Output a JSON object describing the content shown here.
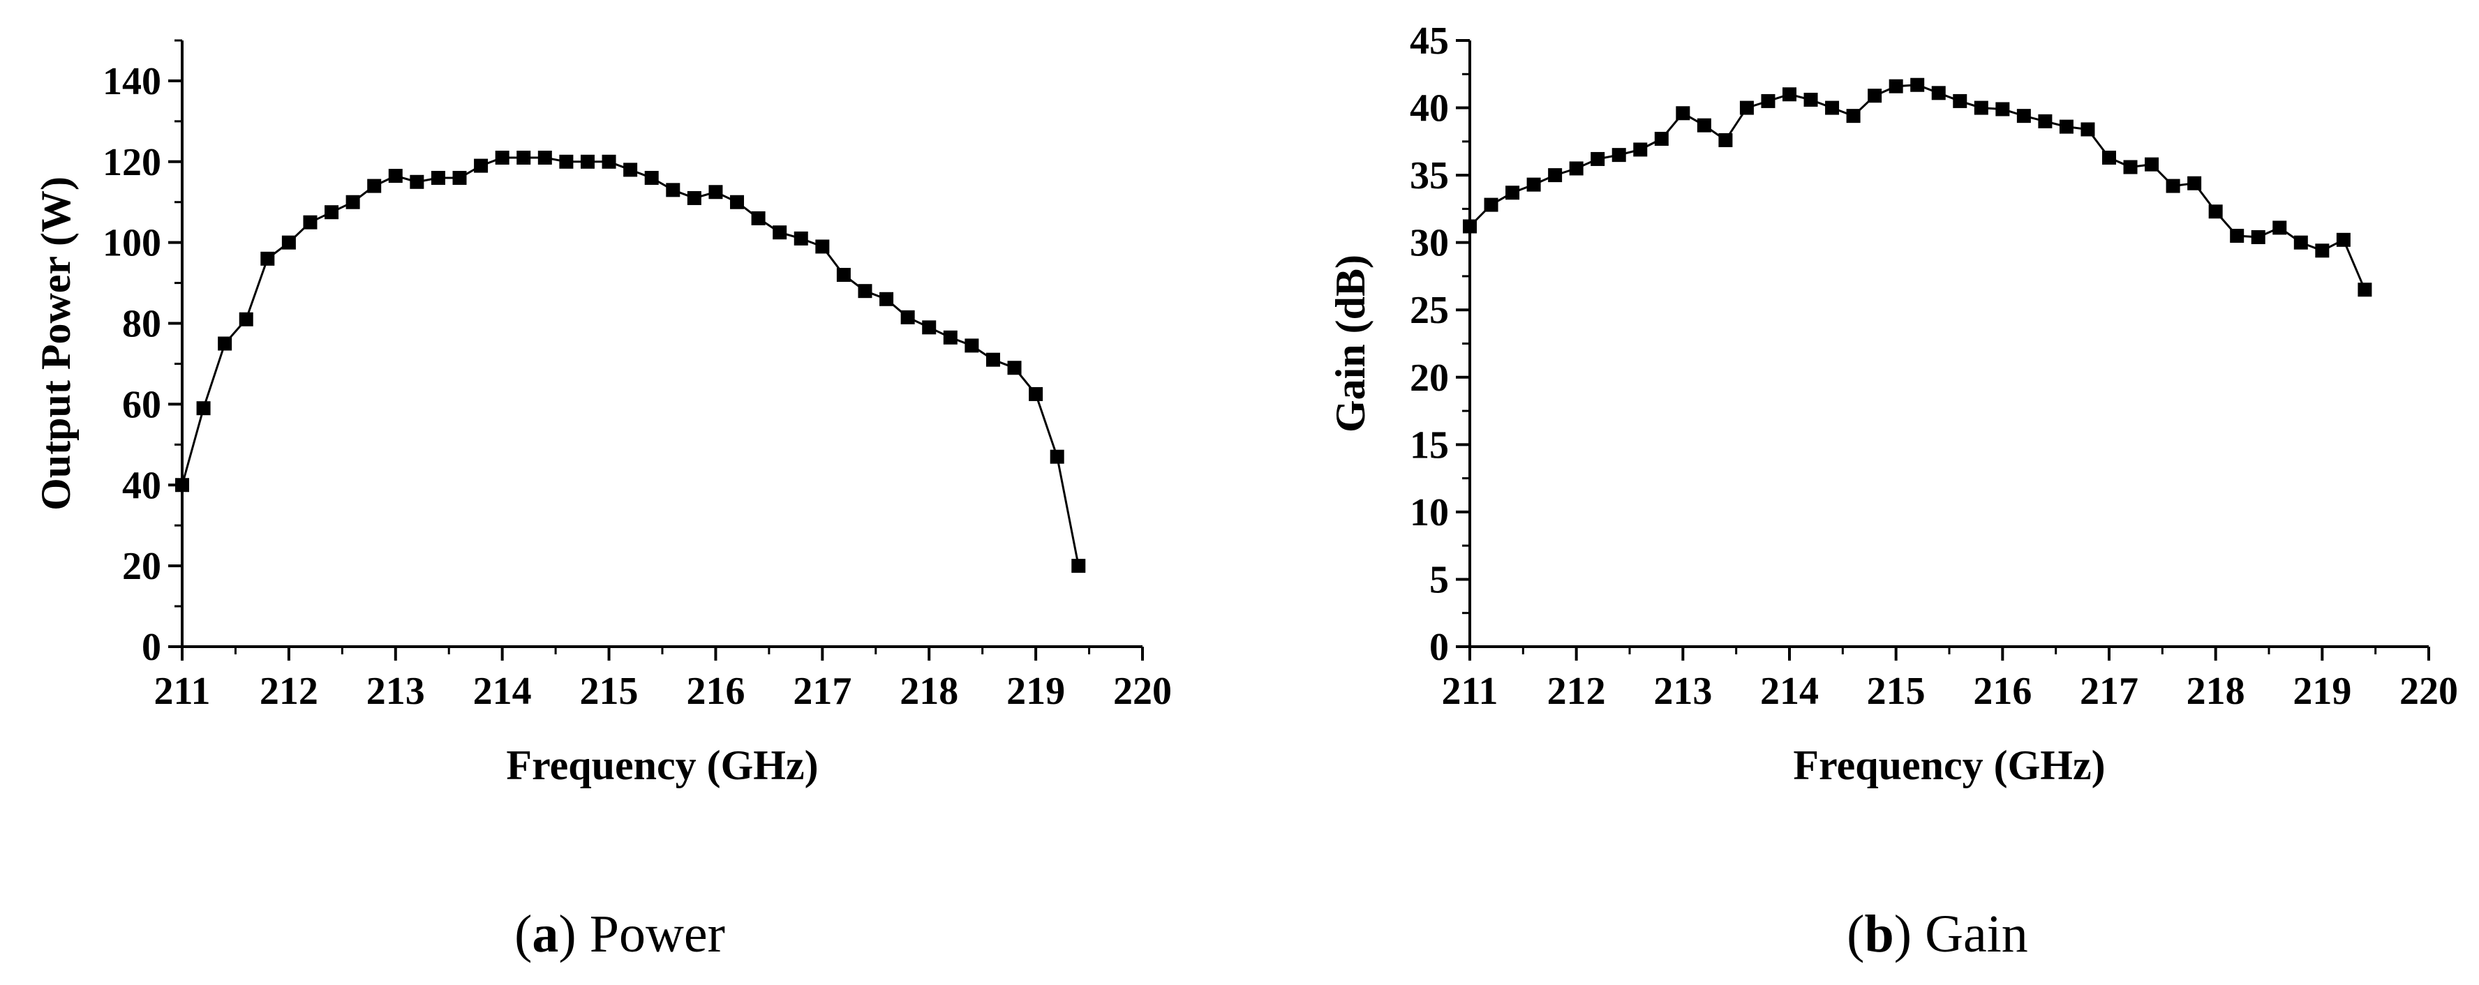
{
  "chart_data": [
    {
      "type": "line",
      "title": "",
      "caption": {
        "prefix": "(",
        "letter": "a",
        "suffix": ")",
        "text": " Power"
      },
      "xlabel": "Frequency (GHz)",
      "ylabel": "Output Power (W)",
      "xlim": [
        211,
        220
      ],
      "ylim": [
        0,
        150
      ],
      "xticks": [
        211,
        212,
        213,
        214,
        215,
        216,
        217,
        218,
        219,
        220
      ],
      "yticks": [
        0,
        20,
        40,
        60,
        80,
        100,
        120,
        140
      ],
      "grid": false,
      "marker": "square",
      "color": "#000000",
      "series": [
        {
          "x": [
            211.0,
            211.2,
            211.4,
            211.6,
            211.8,
            212.0,
            212.2,
            212.4,
            212.6,
            212.8,
            213.0,
            213.2,
            213.4,
            213.6,
            213.8,
            214.0,
            214.2,
            214.4,
            214.6,
            214.8,
            215.0,
            215.2,
            215.4,
            215.6,
            215.8,
            216.0,
            216.2,
            216.4,
            216.6,
            216.8,
            217.0,
            217.2,
            217.4,
            217.6,
            217.8,
            218.0,
            218.2,
            218.4,
            218.6,
            218.8,
            219.0,
            219.2,
            219.4
          ],
          "y": [
            40,
            59,
            75,
            81,
            96,
            100,
            105,
            107.5,
            110,
            114,
            116.5,
            115,
            116,
            116,
            119,
            121,
            121,
            121,
            120,
            120,
            120,
            118,
            116,
            113,
            111,
            112.5,
            110,
            106,
            102.5,
            101,
            99,
            92,
            88,
            86,
            81.5,
            79,
            76.5,
            74.5,
            71,
            69,
            62.5,
            47,
            20
          ]
        }
      ]
    },
    {
      "type": "line",
      "title": "",
      "caption": {
        "prefix": "(",
        "letter": "b",
        "suffix": ")",
        "text": " Gain"
      },
      "xlabel": "Frequency (GHz)",
      "ylabel": "Gain (dB)",
      "xlim": [
        211,
        220
      ],
      "ylim": [
        0,
        45
      ],
      "xticks": [
        211,
        212,
        213,
        214,
        215,
        216,
        217,
        218,
        219,
        220
      ],
      "yticks": [
        0,
        5,
        10,
        15,
        20,
        25,
        30,
        35,
        40,
        45
      ],
      "grid": false,
      "marker": "square",
      "color": "#000000",
      "series": [
        {
          "x": [
            211.0,
            211.2,
            211.4,
            211.6,
            211.8,
            212.0,
            212.2,
            212.4,
            212.6,
            212.8,
            213.0,
            213.2,
            213.4,
            213.6,
            213.8,
            214.0,
            214.2,
            214.4,
            214.6,
            214.8,
            215.0,
            215.2,
            215.4,
            215.6,
            215.8,
            216.0,
            216.2,
            216.4,
            216.6,
            216.8,
            217.0,
            217.2,
            217.4,
            217.6,
            217.8,
            218.0,
            218.2,
            218.4,
            218.6,
            218.8,
            219.0,
            219.2,
            219.4
          ],
          "y": [
            31.2,
            32.8,
            33.7,
            34.3,
            35.0,
            35.5,
            36.2,
            36.5,
            36.9,
            37.7,
            39.6,
            38.7,
            37.6,
            40.0,
            40.5,
            41.0,
            40.6,
            40.0,
            39.4,
            40.9,
            41.6,
            41.7,
            41.1,
            40.5,
            40.0,
            39.9,
            39.4,
            39.0,
            38.6,
            38.4,
            36.3,
            35.6,
            35.8,
            34.2,
            34.4,
            32.3,
            30.5,
            30.4,
            31.1,
            30.0,
            29.4,
            30.2,
            26.5
          ]
        }
      ]
    }
  ]
}
